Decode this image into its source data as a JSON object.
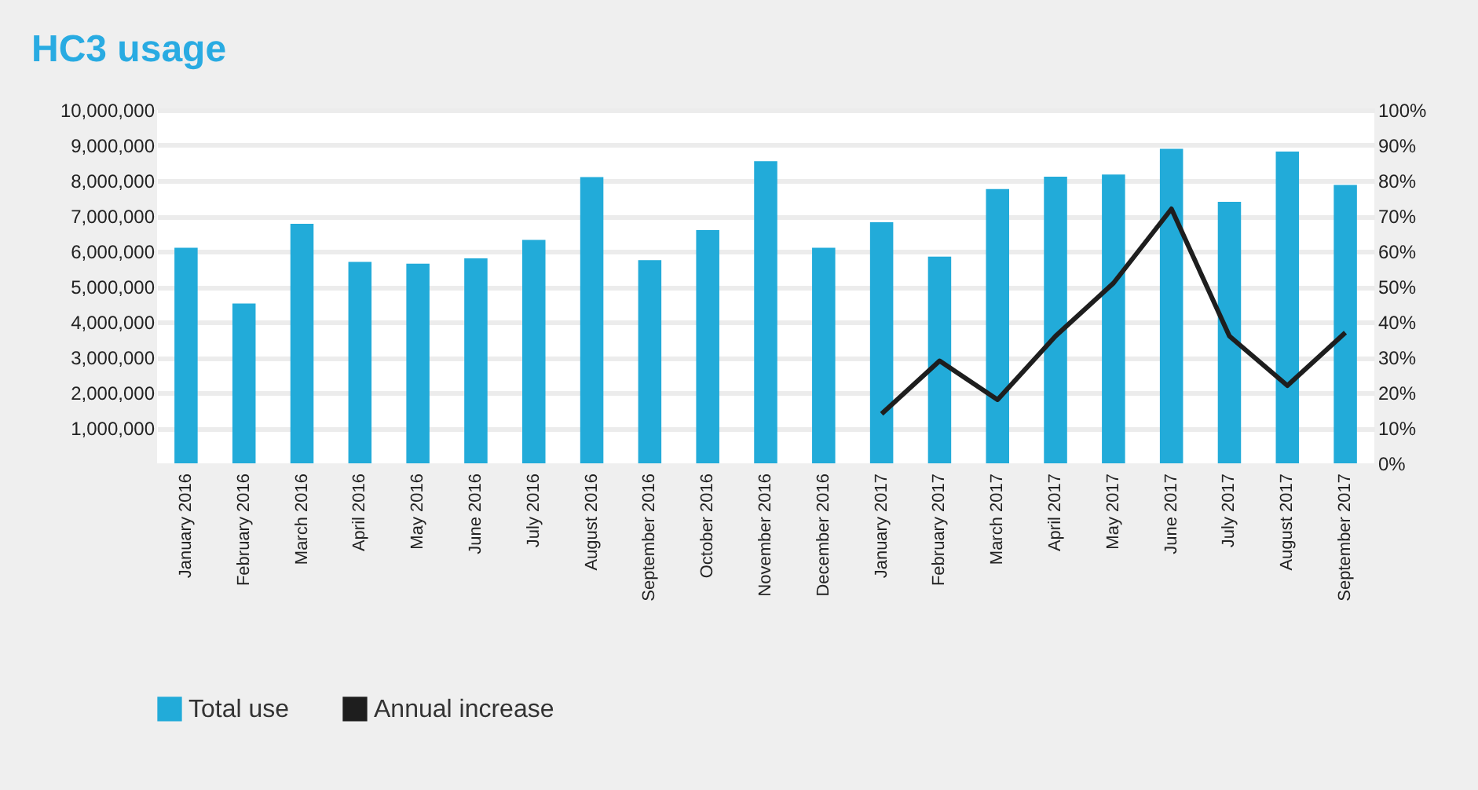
{
  "chart_data": {
    "type": "bar",
    "title": "HC3 usage",
    "categories": [
      "January 2016",
      "February 2016",
      "March 2016",
      "April 2016",
      "May 2016",
      "June 2016",
      "July 2016",
      "August 2016",
      "September 2016",
      "October 2016",
      "November 2016",
      "December 2016",
      "January 2017",
      "February 2017",
      "March 2017",
      "April 2017",
      "May 2017",
      "June 2017",
      "July 2017",
      "August 2017",
      "September 2017"
    ],
    "series": [
      {
        "name": "Total use",
        "color": "#22abd9",
        "values": [
          6100000,
          4520000,
          6780000,
          5700000,
          5650000,
          5800000,
          6320000,
          8100000,
          5750000,
          6600000,
          8550000,
          6100000,
          6820000,
          5850000,
          7760000,
          8110000,
          8170000,
          8900000,
          7400000,
          8820000,
          7880000
        ]
      },
      {
        "name": "Annual increase",
        "type": "line",
        "axis": "y2",
        "color": "#1e1e1e",
        "values": [
          null,
          null,
          null,
          null,
          null,
          null,
          null,
          null,
          null,
          null,
          null,
          null,
          14,
          29,
          18,
          36,
          51,
          72,
          36,
          22,
          37
        ]
      }
    ],
    "ylim": [
      0,
      10000000
    ],
    "yticks": [
      {
        "value": 1000000,
        "label": "1,000,000"
      },
      {
        "value": 2000000,
        "label": "2,000,000"
      },
      {
        "value": 3000000,
        "label": "3,000,000"
      },
      {
        "value": 4000000,
        "label": "4,000,000"
      },
      {
        "value": 5000000,
        "label": "5,000,000"
      },
      {
        "value": 6000000,
        "label": "6,000,000"
      },
      {
        "value": 7000000,
        "label": "7,000,000"
      },
      {
        "value": 8000000,
        "label": "8,000,000"
      },
      {
        "value": 9000000,
        "label": "9,000,000"
      },
      {
        "value": 10000000,
        "label": "10,000,000"
      }
    ],
    "y2lim": [
      0,
      100
    ],
    "y2ticks": [
      {
        "value": 0,
        "label": "0%"
      },
      {
        "value": 10,
        "label": "10%"
      },
      {
        "value": 20,
        "label": "20%"
      },
      {
        "value": 30,
        "label": "30%"
      },
      {
        "value": 40,
        "label": "40%"
      },
      {
        "value": 50,
        "label": "50%"
      },
      {
        "value": 60,
        "label": "60%"
      },
      {
        "value": 70,
        "label": "70%"
      },
      {
        "value": 80,
        "label": "80%"
      },
      {
        "value": 90,
        "label": "90%"
      },
      {
        "value": 100,
        "label": "100%"
      }
    ],
    "grid": "y",
    "legend": "bottom"
  }
}
